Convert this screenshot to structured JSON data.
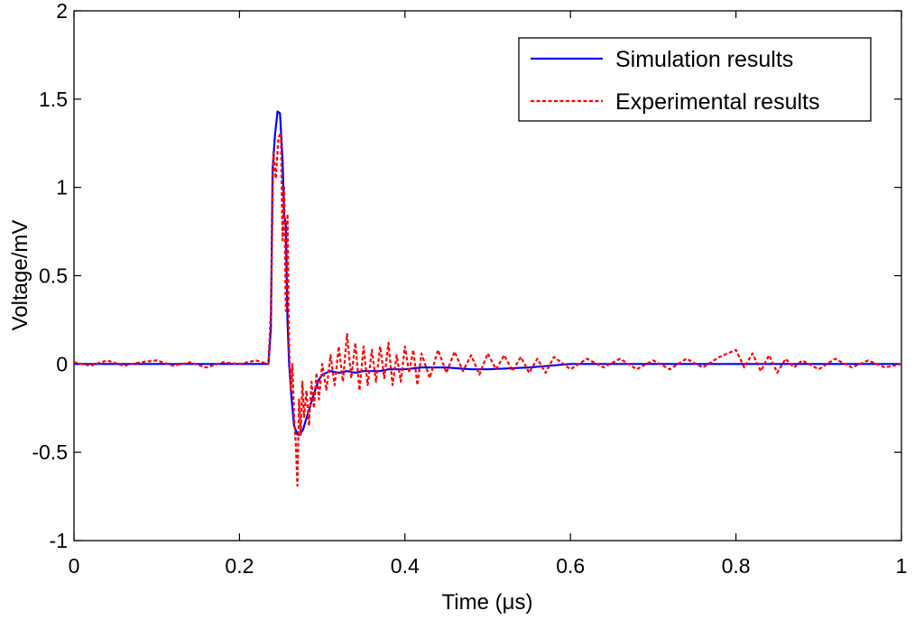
{
  "chart_data": {
    "type": "line",
    "title": "",
    "xlabel": "Time (μs)",
    "ylabel": "Voltage/mV",
    "xlim": [
      0,
      1
    ],
    "ylim": [
      -1,
      2
    ],
    "grid": false,
    "legend_position": "top-right",
    "x_ticks": [
      {
        "value": 0,
        "label": "0"
      },
      {
        "value": 0.2,
        "label": "0.2"
      },
      {
        "value": 0.4,
        "label": "0.4"
      },
      {
        "value": 0.6,
        "label": "0.6"
      },
      {
        "value": 0.8,
        "label": "0.8"
      },
      {
        "value": 1,
        "label": "1"
      }
    ],
    "y_ticks": [
      {
        "value": -1,
        "label": "-1"
      },
      {
        "value": -0.5,
        "label": "-0.5"
      },
      {
        "value": 0,
        "label": "0"
      },
      {
        "value": 0.5,
        "label": "0.5"
      },
      {
        "value": 1,
        "label": "1"
      },
      {
        "value": 1.5,
        "label": "1.5"
      },
      {
        "value": 2,
        "label": "2"
      }
    ],
    "series": [
      {
        "name": "Simulation results",
        "color": "#0000ff",
        "style": "solid",
        "x": [
          0,
          0.1,
          0.2,
          0.235,
          0.238,
          0.24,
          0.243,
          0.246,
          0.249,
          0.252,
          0.254,
          0.256,
          0.258,
          0.26,
          0.263,
          0.266,
          0.27,
          0.273,
          0.277,
          0.28,
          0.284,
          0.288,
          0.292,
          0.296,
          0.3,
          0.305,
          0.31,
          0.32,
          0.33,
          0.34,
          0.35,
          0.36,
          0.37,
          0.38,
          0.4,
          0.42,
          0.45,
          0.48,
          0.5,
          0.55,
          0.6,
          0.7,
          0.8,
          0.9,
          1.0
        ],
        "y": [
          0,
          0,
          0,
          0,
          0.2,
          1.1,
          1.3,
          1.43,
          1.42,
          1.16,
          0.85,
          0.78,
          0.25,
          0.0,
          -0.2,
          -0.35,
          -0.4,
          -0.4,
          -0.37,
          -0.32,
          -0.26,
          -0.2,
          -0.14,
          -0.09,
          -0.06,
          -0.05,
          -0.04,
          -0.05,
          -0.04,
          -0.05,
          -0.04,
          -0.04,
          -0.04,
          -0.03,
          -0.03,
          -0.02,
          -0.02,
          -0.03,
          -0.03,
          -0.02,
          0,
          0,
          0,
          0,
          0
        ]
      },
      {
        "name": "Experimental results",
        "color": "#ff0000",
        "style": "dashed",
        "x": [
          0,
          0.02,
          0.04,
          0.06,
          0.08,
          0.1,
          0.12,
          0.14,
          0.16,
          0.18,
          0.2,
          0.22,
          0.235,
          0.238,
          0.241,
          0.244,
          0.247,
          0.25,
          0.252,
          0.254,
          0.256,
          0.258,
          0.26,
          0.262,
          0.264,
          0.266,
          0.268,
          0.27,
          0.272,
          0.274,
          0.276,
          0.278,
          0.281,
          0.284,
          0.287,
          0.29,
          0.293,
          0.296,
          0.3,
          0.305,
          0.31,
          0.315,
          0.32,
          0.325,
          0.33,
          0.335,
          0.34,
          0.345,
          0.35,
          0.355,
          0.36,
          0.365,
          0.37,
          0.375,
          0.38,
          0.385,
          0.39,
          0.395,
          0.4,
          0.405,
          0.41,
          0.415,
          0.42,
          0.43,
          0.44,
          0.45,
          0.46,
          0.47,
          0.48,
          0.49,
          0.5,
          0.51,
          0.52,
          0.53,
          0.54,
          0.55,
          0.56,
          0.57,
          0.58,
          0.6,
          0.62,
          0.64,
          0.66,
          0.68,
          0.7,
          0.72,
          0.74,
          0.76,
          0.78,
          0.8,
          0.81,
          0.82,
          0.83,
          0.84,
          0.85,
          0.86,
          0.87,
          0.88,
          0.9,
          0.92,
          0.94,
          0.96,
          0.98,
          1.0
        ],
        "y": [
          0.01,
          -0.01,
          0.02,
          -0.01,
          0.01,
          0.02,
          -0.01,
          0.01,
          -0.02,
          0.01,
          0.0,
          0.02,
          0.0,
          0.3,
          1.2,
          1.05,
          1.28,
          1.31,
          0.7,
          1.0,
          0.3,
          0.85,
          0.1,
          -0.15,
          0.0,
          -0.3,
          -0.45,
          -0.69,
          -0.2,
          -0.4,
          -0.1,
          -0.3,
          -0.15,
          -0.35,
          -0.1,
          -0.25,
          -0.05,
          -0.2,
          0.0,
          -0.15,
          0.05,
          -0.12,
          0.1,
          -0.1,
          0.17,
          -0.08,
          0.12,
          -0.15,
          0.1,
          -0.12,
          0.08,
          -0.1,
          0.1,
          -0.08,
          0.12,
          -0.12,
          0.05,
          -0.1,
          0.1,
          -0.05,
          0.08,
          -0.12,
          0.06,
          -0.08,
          0.08,
          -0.05,
          0.07,
          -0.04,
          0.05,
          -0.06,
          0.06,
          -0.03,
          0.05,
          -0.04,
          0.04,
          -0.05,
          0.03,
          -0.05,
          0.04,
          -0.03,
          0.03,
          -0.02,
          0.03,
          -0.03,
          0.02,
          -0.03,
          0.03,
          -0.02,
          0.04,
          0.08,
          -0.02,
          0.06,
          -0.04,
          0.05,
          -0.05,
          0.03,
          -0.02,
          0.02,
          -0.03,
          0.03,
          -0.02,
          0.02,
          -0.02,
          0.0
        ]
      }
    ]
  }
}
